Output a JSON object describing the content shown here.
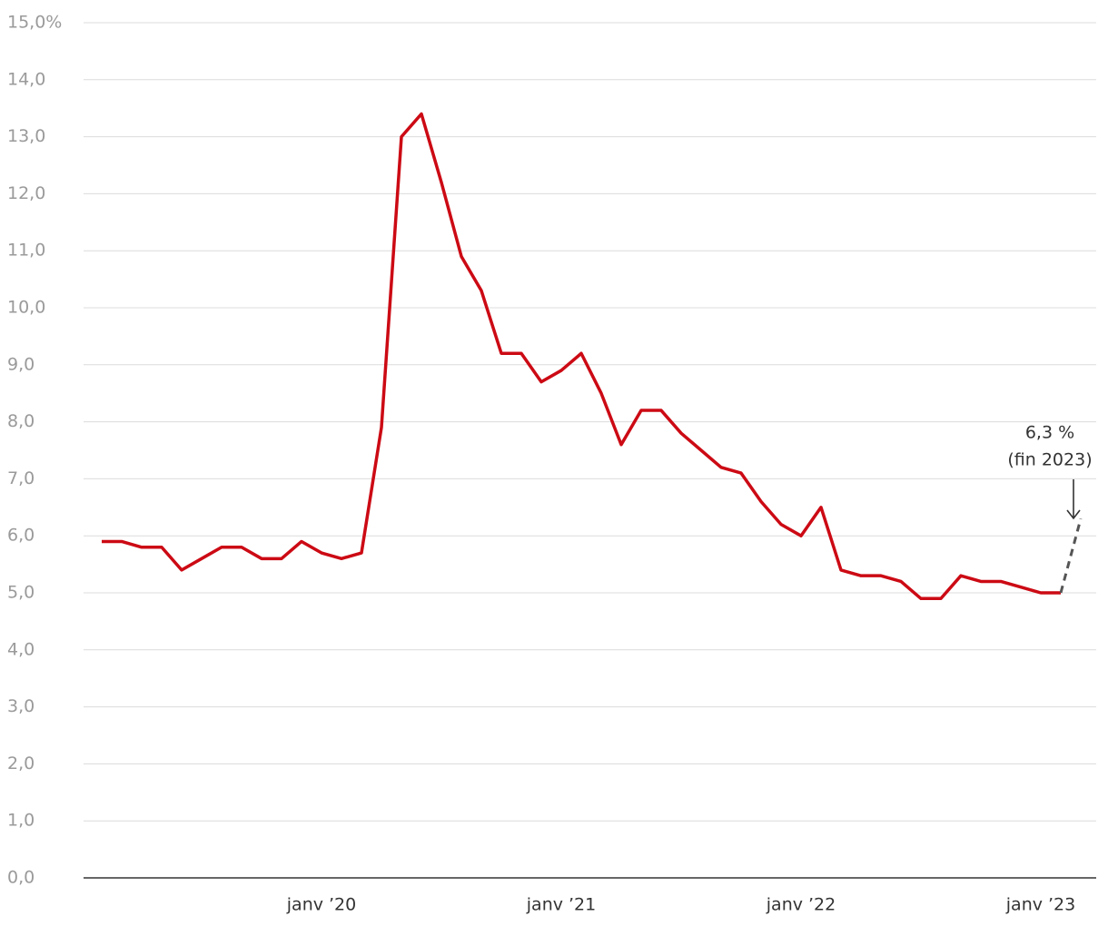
{
  "chart_data": {
    "type": "line",
    "categories": [
      null,
      null,
      null,
      null,
      null,
      null,
      null,
      null,
      null,
      null,
      null,
      "janv ’20",
      null,
      null,
      null,
      null,
      null,
      null,
      null,
      null,
      null,
      null,
      null,
      "janv ’21",
      null,
      null,
      null,
      null,
      null,
      null,
      null,
      null,
      null,
      null,
      null,
      "janv ’22",
      null,
      null,
      null,
      null,
      null,
      null,
      null,
      null,
      null,
      null,
      null,
      "janv ’23",
      null,
      null
    ],
    "series": [
      {
        "color": "#cc0a14",
        "dashed": false,
        "values": [
          5.9,
          5.9,
          5.8,
          5.8,
          5.4,
          5.6,
          5.8,
          5.8,
          5.6,
          5.6,
          5.9,
          5.7,
          5.6,
          5.7,
          7.9,
          13.0,
          13.4,
          12.2,
          10.9,
          10.3,
          9.2,
          9.2,
          8.7,
          8.9,
          9.2,
          8.5,
          7.6,
          8.2,
          8.2,
          7.8,
          7.5,
          7.2,
          7.1,
          6.6,
          6.2,
          6.0,
          6.5,
          5.4,
          5.3,
          5.3,
          5.2,
          4.9,
          4.9,
          5.3,
          5.2,
          5.2,
          5.1,
          5.0,
          5.0,
          null
        ]
      },
      {
        "color": "#555555",
        "dashed": true,
        "values": [
          null,
          null,
          null,
          null,
          null,
          null,
          null,
          null,
          null,
          null,
          null,
          null,
          null,
          null,
          null,
          null,
          null,
          null,
          null,
          null,
          null,
          null,
          null,
          null,
          null,
          null,
          null,
          null,
          null,
          null,
          null,
          null,
          null,
          null,
          null,
          null,
          null,
          null,
          null,
          null,
          null,
          null,
          null,
          null,
          null,
          null,
          null,
          null,
          5.0,
          6.3
        ]
      }
    ],
    "ylim": [
      0,
      15
    ],
    "yticks": [
      {
        "value": 0,
        "label": "0,0"
      },
      {
        "value": 1,
        "label": "1,0"
      },
      {
        "value": 2,
        "label": "2,0"
      },
      {
        "value": 3,
        "label": "3,0"
      },
      {
        "value": 4,
        "label": "4,0"
      },
      {
        "value": 5,
        "label": "5,0"
      },
      {
        "value": 6,
        "label": "6,0"
      },
      {
        "value": 7,
        "label": "7,0"
      },
      {
        "value": 8,
        "label": "8,0"
      },
      {
        "value": 9,
        "label": "9,0"
      },
      {
        "value": 10,
        "label": "10,0"
      },
      {
        "value": 11,
        "label": "11,0"
      },
      {
        "value": 12,
        "label": "12,0"
      },
      {
        "value": 13,
        "label": "13,0"
      },
      {
        "value": 14,
        "label": "14,0"
      },
      {
        "value": 15,
        "label": "15,0%"
      }
    ],
    "grid": true,
    "annotation": [
      "6,3 %",
      "(fin 2023)"
    ]
  }
}
